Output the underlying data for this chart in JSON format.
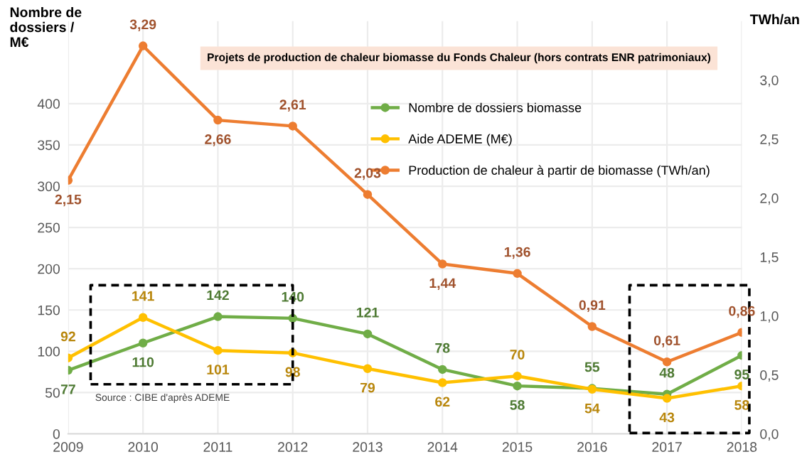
{
  "chart_data": {
    "type": "line",
    "title": "Projets de production de chaleur biomasse du Fonds Chaleur (hors contrats ENR patrimoniaux)",
    "ylabel": "Nombre de dossiers / M€",
    "y2label": "TWh/an",
    "x": [
      2009,
      2010,
      2011,
      2012,
      2013,
      2014,
      2015,
      2016,
      2017,
      2018
    ],
    "series": [
      {
        "name": "Nombre de dossiers biomasse",
        "color": "#70ad47",
        "values": [
          77,
          110,
          142,
          140,
          121,
          78,
          58,
          55,
          48,
          95
        ]
      },
      {
        "name": "Aide ADEME (M€)",
        "color": "#ffc000",
        "values": [
          92,
          141,
          101,
          98,
          79,
          62,
          70,
          54,
          43,
          58
        ]
      },
      {
        "name": "Production de chaleur à partir de biomasse (TWh/an)",
        "color": "#ed7d31",
        "axis": "y2",
        "values": [
          2.15,
          3.29,
          2.66,
          2.61,
          2.03,
          1.44,
          1.36,
          0.91,
          0.61,
          0.86
        ],
        "value_labels": [
          "2,15",
          "3,29",
          "2,66",
          "2,61",
          "2,03",
          "1,44",
          "1,36",
          "0,91",
          "0,61",
          "0,86"
        ]
      }
    ],
    "xlim": [
      2009,
      2018
    ],
    "xticks": [
      2009,
      2010,
      2011,
      2012,
      2013,
      2014,
      2015,
      2016,
      2017,
      2018
    ],
    "ylim": [
      0,
      500
    ],
    "yticks": [
      0,
      50,
      100,
      150,
      200,
      250,
      300,
      350,
      400
    ],
    "y2lim": [
      0,
      3.5
    ],
    "y2ticks": [
      {
        "value": 0,
        "label": "0,0"
      },
      {
        "value": 0.5,
        "label": "0,5"
      },
      {
        "value": 1,
        "label": "1,0"
      },
      {
        "value": 1.5,
        "label": "1,5"
      },
      {
        "value": 2,
        "label": "2,0"
      },
      {
        "value": 2.5,
        "label": "2,5"
      },
      {
        "value": 3,
        "label": "3,0"
      }
    ],
    "data_labels": true,
    "marker": "circle",
    "line_style": "solid",
    "grid": true,
    "legend": "top right",
    "annotations": [
      "Source : CIBE d'après ADEME"
    ]
  }
}
